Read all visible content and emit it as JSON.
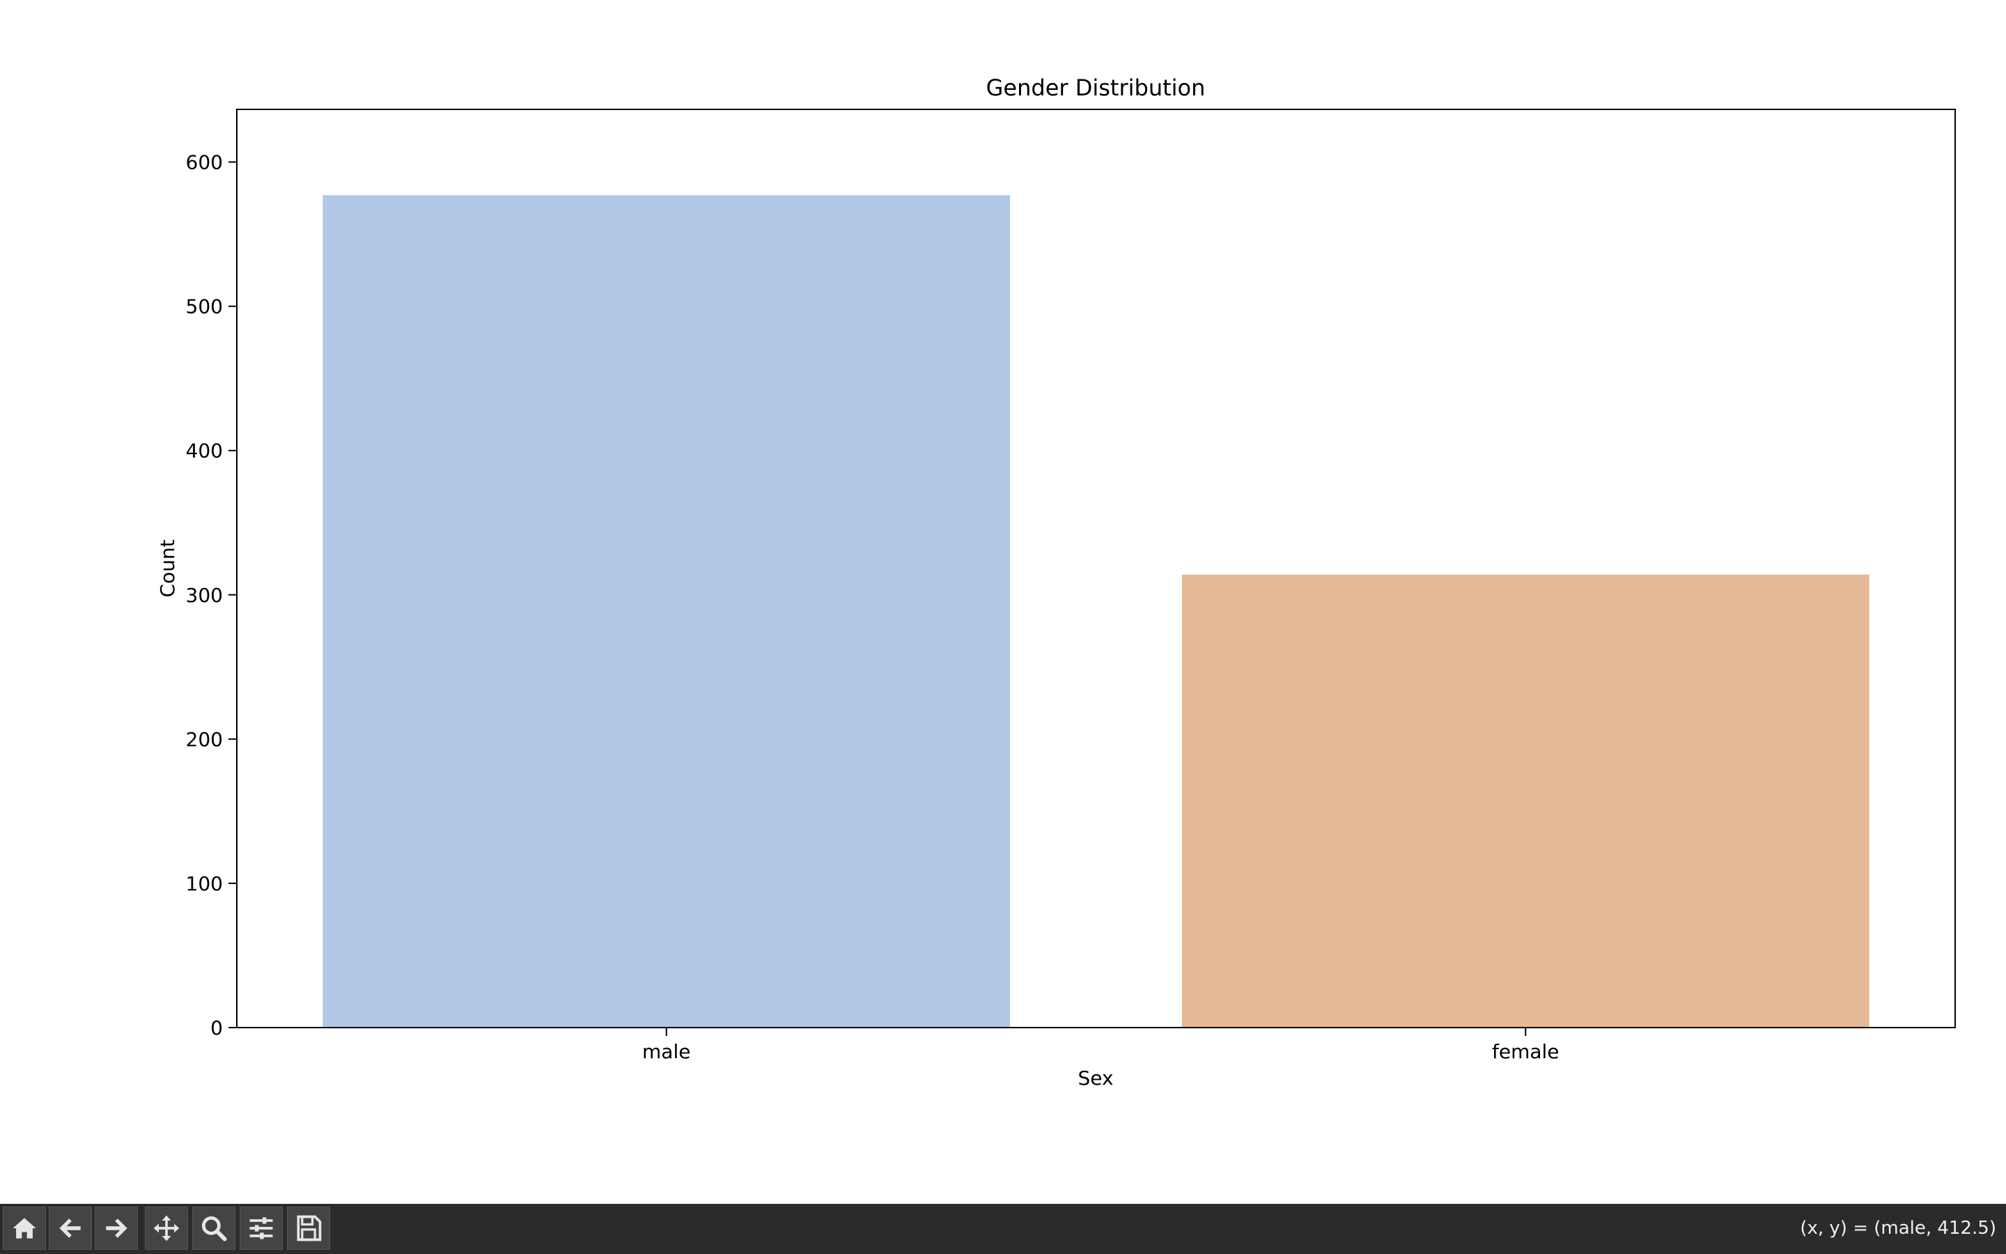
{
  "chart_data": {
    "type": "bar",
    "title": "Gender Distribution",
    "xlabel": "Sex",
    "ylabel": "Count",
    "categories": [
      "male",
      "female"
    ],
    "values": [
      577,
      314
    ],
    "colors": [
      "#b2c8e7",
      "#e5b995"
    ],
    "ylim": [
      0,
      600
    ],
    "yticks": [
      0,
      100,
      200,
      300,
      400,
      500,
      600
    ],
    "grid": false
  },
  "toolbar": {
    "buttons": [
      {
        "name": "home-button",
        "icon": "home-icon"
      },
      {
        "name": "back-button",
        "icon": "arrow-left-icon"
      },
      {
        "name": "forward-button",
        "icon": "arrow-right-icon"
      },
      {
        "name": "pan-button",
        "icon": "move-icon"
      },
      {
        "name": "zoom-button",
        "icon": "magnifier-icon"
      },
      {
        "name": "configure-subplots-button",
        "icon": "sliders-icon"
      },
      {
        "name": "save-button",
        "icon": "floppy-disk-icon"
      }
    ],
    "coordinates": "(x, y) = (male, 412.5)"
  }
}
